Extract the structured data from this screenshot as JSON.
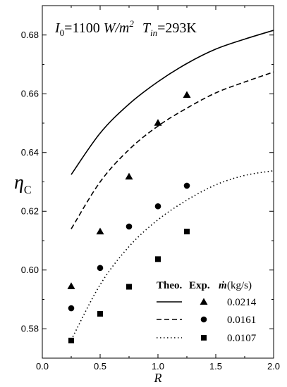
{
  "chart_data": {
    "type": "line",
    "title": "",
    "annotation": {
      "i0_symbol": "I",
      "i0_sub": "0",
      "i0_value": "=1100 ",
      "i0_unit_w": "W/m",
      "i0_unit_sup": "2",
      "tin_symbol": "T",
      "tin_sub": "in",
      "tin_value": "=293K"
    },
    "xlabel": "R",
    "ylabel_main": "η",
    "ylabel_sub": "C",
    "xlim": [
      0.0,
      2.0
    ],
    "ylim": [
      0.57,
      0.69
    ],
    "x_ticks": [
      0.0,
      0.5,
      1.0,
      1.5,
      2.0
    ],
    "x_tick_labels": [
      "0.0",
      "0.5",
      "1.0",
      "1.5",
      "2.0"
    ],
    "y_ticks": [
      0.58,
      0.6,
      0.62,
      0.64,
      0.66,
      0.68
    ],
    "y_tick_labels": [
      "0.58",
      "0.60",
      "0.62",
      "0.64",
      "0.66",
      "0.68"
    ],
    "legend": {
      "header_theo": "Theo.",
      "header_exp": "Exp.",
      "header_mdot": "ṁ",
      "header_unit": "(kg/s)",
      "placement": "bottom-right"
    },
    "series": [
      {
        "name": "0.0214",
        "marker": "triangle",
        "line_style": "solid",
        "theory_x": [
          0.25,
          0.5,
          0.75,
          1.0,
          1.25,
          1.5,
          1.75,
          2.0
        ],
        "theory_y": [
          0.6325,
          0.6466,
          0.6565,
          0.6641,
          0.6703,
          0.6752,
          0.6786,
          0.6816
        ],
        "exp_x": [
          0.25,
          0.5,
          0.75,
          1.0,
          1.25
        ],
        "exp_y": [
          0.5945,
          0.6131,
          0.6318,
          0.6501,
          0.6596
        ]
      },
      {
        "name": "0.0161",
        "marker": "circle",
        "line_style": "dashed",
        "theory_x": [
          0.25,
          0.5,
          0.75,
          1.0,
          1.25,
          1.5,
          1.75,
          2.0
        ],
        "theory_y": [
          0.614,
          0.63,
          0.641,
          0.649,
          0.6551,
          0.6603,
          0.664,
          0.6674
        ],
        "exp_x": [
          0.25,
          0.5,
          0.75,
          1.0,
          1.25
        ],
        "exp_y": [
          0.587,
          0.6007,
          0.6148,
          0.6217,
          0.6287
        ]
      },
      {
        "name": "0.0107",
        "marker": "square",
        "line_style": "dotted",
        "theory_x": [
          0.25,
          0.5,
          0.75,
          1.0,
          1.25,
          1.5,
          1.75,
          2.0
        ],
        "theory_y": [
          0.5762,
          0.595,
          0.608,
          0.6171,
          0.6238,
          0.629,
          0.6322,
          0.6338
        ],
        "exp_x": [
          0.25,
          0.5,
          0.75,
          1.0,
          1.25
        ],
        "exp_y": [
          0.576,
          0.5851,
          0.5943,
          0.6037,
          0.6131
        ]
      }
    ]
  }
}
